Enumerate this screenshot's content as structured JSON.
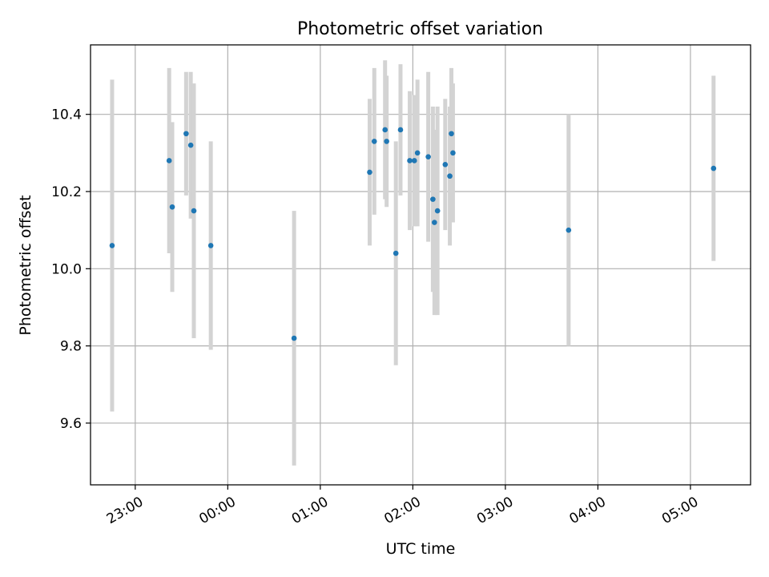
{
  "chart_data": {
    "type": "scatter",
    "title": "Photometric offset variation",
    "xlabel": "UTC time",
    "ylabel": "Photometric offset",
    "x_tick_labels": [
      "23:00",
      "00:00",
      "01:00",
      "02:00",
      "03:00",
      "04:00",
      "05:00"
    ],
    "y_tick_labels": [
      "9.6",
      "9.8",
      "10.0",
      "10.2",
      "10.4"
    ],
    "grid": true,
    "colors": {
      "point": "#1f77b4",
      "errorbar": "#d3d3d3",
      "grid": "#b0b0b0",
      "axes": "#000000"
    },
    "xlim": [
      "22:31",
      "05:39"
    ],
    "ylim": [
      9.44,
      10.58
    ],
    "points": [
      {
        "time": "22:45",
        "y": 10.06,
        "err": 0.43
      },
      {
        "time": "23:22",
        "y": 10.28,
        "err": 0.24
      },
      {
        "time": "23:24",
        "y": 10.16,
        "err": 0.22
      },
      {
        "time": "23:33",
        "y": 10.35,
        "err": 0.16
      },
      {
        "time": "23:36",
        "y": 10.32,
        "err": 0.19
      },
      {
        "time": "23:38",
        "y": 10.15,
        "err": 0.33
      },
      {
        "time": "23:49",
        "y": 10.06,
        "err": 0.27
      },
      {
        "time": "00:43",
        "y": 9.82,
        "err": 0.33
      },
      {
        "time": "01:32",
        "y": 10.25,
        "err": 0.19
      },
      {
        "time": "01:35",
        "y": 10.33,
        "err": 0.19
      },
      {
        "time": "01:42",
        "y": 10.36,
        "err": 0.18
      },
      {
        "time": "01:43",
        "y": 10.33,
        "err": 0.17
      },
      {
        "time": "01:49",
        "y": 10.04,
        "err": 0.29
      },
      {
        "time": "01:52",
        "y": 10.36,
        "err": 0.17
      },
      {
        "time": "01:58",
        "y": 10.28,
        "err": 0.18
      },
      {
        "time": "02:01",
        "y": 10.28,
        "err": 0.17
      },
      {
        "time": "02:03",
        "y": 10.3,
        "err": 0.19
      },
      {
        "time": "02:10",
        "y": 10.29,
        "err": 0.22
      },
      {
        "time": "02:13",
        "y": 10.18,
        "err": 0.24
      },
      {
        "time": "02:14",
        "y": 10.12,
        "err": 0.24
      },
      {
        "time": "02:16",
        "y": 10.15,
        "err": 0.27
      },
      {
        "time": "02:21",
        "y": 10.27,
        "err": 0.17
      },
      {
        "time": "02:24",
        "y": 10.24,
        "err": 0.18
      },
      {
        "time": "02:25",
        "y": 10.35,
        "err": 0.17
      },
      {
        "time": "02:26",
        "y": 10.3,
        "err": 0.18
      },
      {
        "time": "03:41",
        "y": 10.1,
        "err": 0.3
      },
      {
        "time": "05:15",
        "y": 10.26,
        "err": 0.24
      }
    ]
  }
}
